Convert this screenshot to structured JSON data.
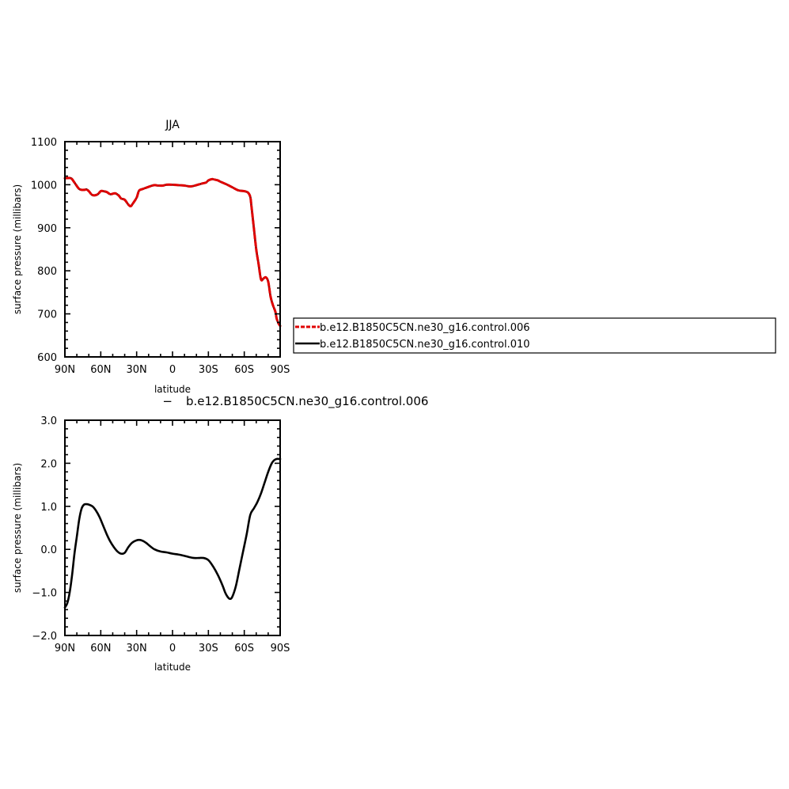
{
  "chart_data": [
    {
      "type": "line",
      "title": "JJA",
      "xlabel": "latitude",
      "ylabel": "surface pressure (millibars)",
      "xlim": [
        90,
        -90
      ],
      "ylim": [
        600,
        1100
      ],
      "x_ticks": [
        90,
        60,
        30,
        0,
        -30,
        -60,
        -90
      ],
      "x_tick_labels": [
        "90N",
        "60N",
        "30N",
        "0",
        "30S",
        "60S",
        "90S"
      ],
      "y_ticks": [
        600,
        700,
        800,
        900,
        1000,
        1100
      ],
      "y_tick_labels": [
        "600",
        "700",
        "800",
        "900",
        "1000",
        "1100"
      ],
      "legend_placement": "right",
      "series": [
        {
          "name": "b.e12.B1850C5CN.ne30_g16.control.006",
          "color": "#e00000",
          "dash": "dashed",
          "x": [
            90,
            85,
            82,
            78,
            74,
            72,
            70,
            67,
            63,
            60,
            58,
            55,
            52,
            48,
            45,
            43,
            40,
            37,
            35,
            33,
            30,
            28,
            25,
            22,
            18,
            15,
            12,
            8,
            5,
            0,
            -5,
            -10,
            -15,
            -20,
            -25,
            -28,
            -30,
            -33,
            -35,
            -38,
            -40,
            -45,
            -50,
            -55,
            -60,
            -63,
            -65,
            -66,
            -68,
            -70,
            -72,
            -74,
            -76,
            -78,
            -80,
            -82,
            -84,
            -86,
            -87,
            -88,
            -89,
            -90
          ],
          "y": [
            1015,
            1015,
            1005,
            990,
            988,
            989,
            985,
            976,
            977,
            985,
            985,
            983,
            978,
            980,
            975,
            968,
            965,
            954,
            950,
            957,
            970,
            986,
            990,
            993,
            997,
            999,
            998,
            998,
            1000,
            1000,
            999,
            998,
            996,
            999,
            1003,
            1005,
            1010,
            1013,
            1012,
            1010,
            1007,
            1001,
            994,
            987,
            985,
            982,
            972,
            950,
            900,
            850,
            815,
            780,
            782,
            785,
            775,
            740,
            720,
            705,
            690,
            682,
            676,
            672
          ]
        },
        {
          "name": "b.e12.B1850C5CN.ne30_g16.control.010",
          "color": "#000000",
          "dash": "solid",
          "x": [
            90,
            85,
            82,
            78,
            74,
            72,
            70,
            67,
            63,
            60,
            58,
            55,
            52,
            48,
            45,
            43,
            40,
            37,
            35,
            33,
            30,
            28,
            25,
            22,
            18,
            15,
            12,
            8,
            5,
            0,
            -5,
            -10,
            -15,
            -20,
            -25,
            -28,
            -30,
            -33,
            -35,
            -38,
            -40,
            -45,
            -50,
            -55,
            -60,
            -63,
            -65,
            -66,
            -68,
            -70,
            -72,
            -74,
            -76,
            -78,
            -80,
            -82,
            -84,
            -86,
            -87,
            -88,
            -89,
            -90
          ],
          "y": [
            1015,
            1015,
            1005,
            990,
            988,
            989,
            985,
            976,
            977,
            985,
            985,
            983,
            978,
            980,
            975,
            968,
            965,
            954,
            950,
            957,
            970,
            986,
            990,
            993,
            997,
            999,
            998,
            998,
            1000,
            1000,
            999,
            998,
            996,
            999,
            1003,
            1005,
            1010,
            1013,
            1012,
            1010,
            1007,
            1001,
            994,
            987,
            985,
            982,
            972,
            950,
            900,
            850,
            815,
            780,
            782,
            785,
            775,
            740,
            720,
            705,
            690,
            682,
            676,
            672
          ]
        }
      ]
    },
    {
      "type": "line",
      "title": "b.e12.B1850C5CN.ne30_g16.control.006",
      "title_prefix": "−",
      "xlabel": "latitude",
      "ylabel": "surface pressure (millibars)",
      "xlim": [
        90,
        -90
      ],
      "ylim": [
        -2.0,
        3.0
      ],
      "x_ticks": [
        90,
        60,
        30,
        0,
        -30,
        -60,
        -90
      ],
      "x_tick_labels": [
        "90N",
        "60N",
        "30N",
        "0",
        "30S",
        "60S",
        "90S"
      ],
      "y_ticks": [
        -2,
        -1,
        0,
        1,
        2,
        3
      ],
      "y_tick_labels": [
        "−2.0",
        "−1.0",
        "0.0",
        "1.0",
        "2.0",
        "3.0"
      ],
      "series": [
        {
          "color": "#000000",
          "dash": "solid",
          "x": [
            90,
            88,
            86,
            84,
            82,
            80,
            78,
            76,
            74,
            72,
            70,
            67,
            64,
            61,
            58,
            55,
            52,
            49,
            46,
            43,
            40,
            37,
            34,
            31,
            28,
            25,
            22,
            19,
            15,
            10,
            5,
            0,
            -5,
            -10,
            -14,
            -18,
            -22,
            -26,
            -30,
            -34,
            -38,
            -42,
            -44,
            -46,
            -48,
            -50,
            -53,
            -56,
            -59,
            -62,
            -65,
            -68,
            -71,
            -74,
            -77,
            -80,
            -83,
            -85,
            -87,
            -89,
            -90
          ],
          "y": [
            -1.35,
            -1.25,
            -1.0,
            -0.6,
            -0.1,
            0.3,
            0.7,
            0.95,
            1.04,
            1.05,
            1.04,
            1.0,
            0.9,
            0.75,
            0.55,
            0.35,
            0.18,
            0.05,
            -0.05,
            -0.1,
            -0.08,
            0.05,
            0.15,
            0.2,
            0.22,
            0.2,
            0.15,
            0.08,
            0.0,
            -0.05,
            -0.07,
            -0.1,
            -0.12,
            -0.15,
            -0.18,
            -0.2,
            -0.2,
            -0.2,
            -0.25,
            -0.4,
            -0.6,
            -0.85,
            -1.0,
            -1.1,
            -1.15,
            -1.1,
            -0.85,
            -0.45,
            -0.05,
            0.35,
            0.8,
            0.95,
            1.1,
            1.3,
            1.55,
            1.8,
            2.0,
            2.07,
            2.1,
            2.1,
            2.1
          ]
        }
      ]
    }
  ]
}
